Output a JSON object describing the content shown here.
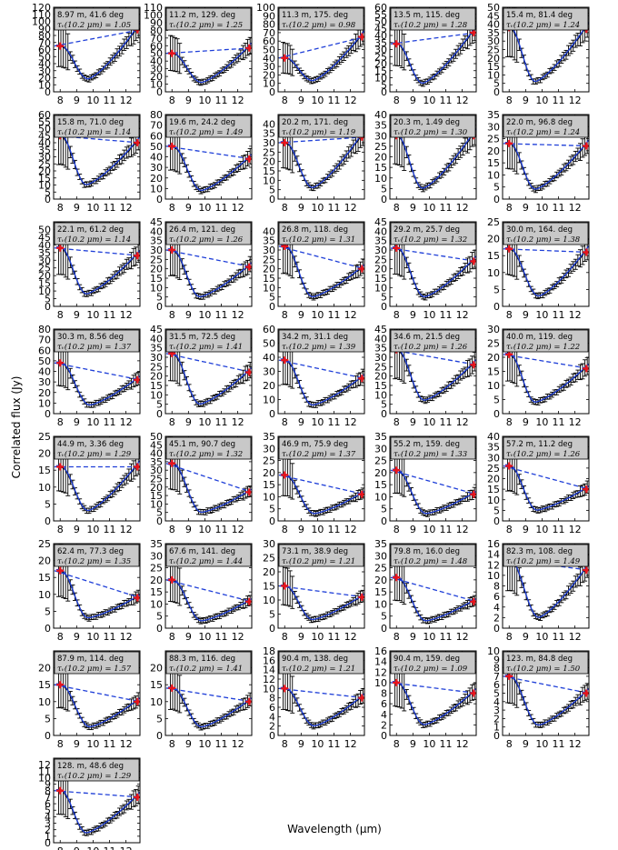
{
  "chart_data": {
    "type": "line",
    "xlabel": "Wavelength (μm)",
    "ylabel": "Correlated flux (Jy)",
    "xlim": [
      7.6,
      12.85
    ],
    "x_ticks": [
      8,
      9,
      10,
      11,
      12
    ],
    "series_legend": [
      "observed correlated flux with error bars",
      "model fit",
      "continuum (dashed)",
      "continuum anchor points"
    ],
    "colors": {
      "data": "#000000",
      "model": "#1f3fd8",
      "continuum": "#1f3fd8",
      "anchor": "#e8141b",
      "annotation_bg": "#c8c8c8"
    },
    "panels": [
      {
        "baseline": "8.97 m, 41.6 deg",
        "tau": "τᵥ(10.2 μm) = 1.05",
        "ylim": [
          0,
          120
        ],
        "yticks": [
          0,
          10,
          20,
          30,
          40,
          50,
          60,
          70,
          80,
          90,
          100,
          110,
          120
        ],
        "start": 65,
        "end": 88,
        "min": 18,
        "min_x": 9.7
      },
      {
        "baseline": "11.2 m, 129. deg",
        "tau": "τᵥ(10.2 μm) = 1.25",
        "ylim": [
          0,
          110
        ],
        "yticks": [
          0,
          10,
          20,
          30,
          40,
          50,
          60,
          70,
          80,
          90,
          100,
          110
        ],
        "start": 50,
        "end": 57,
        "min": 12,
        "min_x": 9.8
      },
      {
        "baseline": "11.3 m, 175. deg",
        "tau": "τᵥ(10.2 μm) = 0.98",
        "ylim": [
          0,
          100
        ],
        "yticks": [
          0,
          10,
          20,
          30,
          40,
          50,
          60,
          70,
          80,
          90,
          100
        ],
        "start": 40,
        "end": 65,
        "min": 13,
        "min_x": 9.7
      },
      {
        "baseline": "13.5 m, 115. deg",
        "tau": "τᵥ(10.2 μm) = 1.28",
        "ylim": [
          0,
          60
        ],
        "yticks": [
          0,
          5,
          10,
          15,
          20,
          25,
          30,
          35,
          40,
          45,
          50,
          55,
          60
        ],
        "start": 34,
        "end": 42,
        "min": 6,
        "min_x": 9.6
      },
      {
        "baseline": "15.4 m, 81.4 deg",
        "tau": "τᵥ(10.2 μm) = 1.24",
        "ylim": [
          0,
          50
        ],
        "yticks": [
          0,
          5,
          10,
          15,
          20,
          25,
          30,
          35,
          40,
          45,
          50
        ],
        "start": 38,
        "end": 37,
        "min": 6,
        "min_x": 9.6
      },
      {
        "baseline": "15.8 m, 71.0 deg",
        "tau": "τᵥ(10.2 μm) = 1.14",
        "ylim": [
          0,
          60
        ],
        "yticks": [
          0,
          5,
          10,
          15,
          20,
          25,
          30,
          35,
          40,
          45,
          50,
          55,
          60
        ],
        "start": 45,
        "end": 40,
        "min": 10,
        "min_x": 9.6
      },
      {
        "baseline": "19.6 m, 24.2 deg",
        "tau": "τᵥ(10.2 μm) = 1.49",
        "ylim": [
          0,
          80
        ],
        "yticks": [
          0,
          10,
          20,
          30,
          40,
          50,
          60,
          70,
          80
        ],
        "start": 50,
        "end": 38,
        "min": 8,
        "min_x": 9.8
      },
      {
        "baseline": "20.2 m, 171. deg",
        "tau": "τᵥ(10.2 μm) = 1.19",
        "ylim": [
          0,
          45
        ],
        "yticks": [
          0,
          5,
          10,
          15,
          20,
          25,
          30,
          35,
          40
        ],
        "start": 30,
        "end": 33,
        "min": 6,
        "min_x": 9.7
      },
      {
        "baseline": "20.3 m, 1.49 deg",
        "tau": "τᵥ(10.2 μm) = 1.30",
        "ylim": [
          0,
          40
        ],
        "yticks": [
          0,
          5,
          10,
          15,
          20,
          25,
          30,
          35,
          40
        ],
        "start": 30,
        "end": 30,
        "min": 5,
        "min_x": 9.6
      },
      {
        "baseline": "22.0 m, 96.8 deg",
        "tau": "τᵥ(10.2 μm) = 1.24",
        "ylim": [
          0,
          35
        ],
        "yticks": [
          0,
          5,
          10,
          15,
          20,
          25,
          30,
          35
        ],
        "start": 23,
        "end": 22,
        "min": 4,
        "min_x": 9.6
      },
      {
        "baseline": "22.1 m, 61.2 deg",
        "tau": "τᵥ(10.2 μm) = 1.14",
        "ylim": [
          0,
          55
        ],
        "yticks": [
          0,
          5,
          10,
          15,
          20,
          25,
          30,
          35,
          40,
          45,
          50
        ],
        "start": 38,
        "end": 33,
        "min": 8,
        "min_x": 9.6
      },
      {
        "baseline": "26.4 m, 121. deg",
        "tau": "τᵥ(10.2 μm) = 1.26",
        "ylim": [
          0,
          45
        ],
        "yticks": [
          0,
          5,
          10,
          15,
          20,
          25,
          30,
          35,
          40,
          45
        ],
        "start": 30,
        "end": 21,
        "min": 5,
        "min_x": 9.7
      },
      {
        "baseline": "26.8 m, 118. deg",
        "tau": "τᵥ(10.2 μm) = 1.31",
        "ylim": [
          0,
          45
        ],
        "yticks": [
          0,
          5,
          10,
          15,
          20,
          25,
          30,
          35,
          40
        ],
        "start": 32,
        "end": 20,
        "min": 5,
        "min_x": 9.7
      },
      {
        "baseline": "29.2 m, 25.7 deg",
        "tau": "τᵥ(10.2 μm) = 1.32",
        "ylim": [
          0,
          45
        ],
        "yticks": [
          0,
          5,
          10,
          15,
          20,
          25,
          30,
          35,
          40,
          45
        ],
        "start": 31,
        "end": 24,
        "min": 5,
        "min_x": 9.7
      },
      {
        "baseline": "30.0 m, 164. deg",
        "tau": "τᵥ(10.2 μm) = 1.38",
        "ylim": [
          0,
          25
        ],
        "yticks": [
          0,
          5,
          10,
          15,
          20,
          25
        ],
        "start": 17,
        "end": 16,
        "min": 3,
        "min_x": 9.8
      },
      {
        "baseline": "30.3 m, 8.56 deg",
        "tau": "τᵥ(10.2 μm) = 1.37",
        "ylim": [
          0,
          80
        ],
        "yticks": [
          0,
          10,
          20,
          30,
          40,
          50,
          60,
          70,
          80
        ],
        "start": 48,
        "end": 32,
        "min": 8,
        "min_x": 9.8
      },
      {
        "baseline": "31.5 m, 72.5 deg",
        "tau": "τᵥ(10.2 μm) = 1.41",
        "ylim": [
          0,
          45
        ],
        "yticks": [
          0,
          5,
          10,
          15,
          20,
          25,
          30,
          35,
          40,
          45
        ],
        "start": 32,
        "end": 22,
        "min": 5,
        "min_x": 9.7
      },
      {
        "baseline": "34.2 m, 31.1 deg",
        "tau": "τᵥ(10.2 μm) = 1.39",
        "ylim": [
          0,
          60
        ],
        "yticks": [
          0,
          10,
          20,
          30,
          40,
          50,
          60
        ],
        "start": 38,
        "end": 25,
        "min": 6,
        "min_x": 9.7
      },
      {
        "baseline": "34.6 m, 21.5 deg",
        "tau": "τᵥ(10.2 μm) = 1.26",
        "ylim": [
          0,
          45
        ],
        "yticks": [
          0,
          5,
          10,
          15,
          20,
          25,
          30,
          35,
          40,
          45
        ],
        "start": 34,
        "end": 26,
        "min": 7,
        "min_x": 9.7
      },
      {
        "baseline": "40.0 m, 119. deg",
        "tau": "τᵥ(10.2 μm) = 1.22",
        "ylim": [
          0,
          30
        ],
        "yticks": [
          0,
          5,
          10,
          15,
          20,
          25,
          30
        ],
        "start": 21,
        "end": 16,
        "min": 4,
        "min_x": 9.6
      },
      {
        "baseline": "44.9 m, 3.36 deg",
        "tau": "τᵥ(10.2 μm) = 1.29",
        "ylim": [
          0,
          25
        ],
        "yticks": [
          0,
          5,
          10,
          15,
          20,
          25
        ],
        "start": 16,
        "end": 16,
        "min": 3,
        "min_x": 9.7
      },
      {
        "baseline": "45.1 m, 90.7 deg",
        "tau": "τᵥ(10.2 μm) = 1.32",
        "ylim": [
          0,
          50
        ],
        "yticks": [
          0,
          5,
          10,
          15,
          20,
          25,
          30,
          35,
          40,
          45,
          50
        ],
        "start": 34,
        "end": 17,
        "min": 5,
        "min_x": 9.8
      },
      {
        "baseline": "46.9 m, 75.9 deg",
        "tau": "τᵥ(10.2 μm) = 1.37",
        "ylim": [
          0,
          35
        ],
        "yticks": [
          0,
          5,
          10,
          15,
          20,
          25,
          30,
          35
        ],
        "start": 19,
        "end": 11,
        "min": 3,
        "min_x": 9.8
      },
      {
        "baseline": "55.2 m, 159. deg",
        "tau": "τᵥ(10.2 μm) = 1.33",
        "ylim": [
          0,
          35
        ],
        "yticks": [
          0,
          5,
          10,
          15,
          20,
          25,
          30,
          35
        ],
        "start": 21,
        "end": 11,
        "min": 3,
        "min_x": 9.8
      },
      {
        "baseline": "57.2 m, 11.2 deg",
        "tau": "τᵥ(10.2 μm) = 1.26",
        "ylim": [
          0,
          40
        ],
        "yticks": [
          0,
          5,
          10,
          15,
          20,
          25,
          30,
          35,
          40
        ],
        "start": 26,
        "end": 15,
        "min": 5,
        "min_x": 9.7
      },
      {
        "baseline": "62.4 m, 77.3 deg",
        "tau": "τᵥ(10.2 μm) = 1.35",
        "ylim": [
          0,
          25
        ],
        "yticks": [
          0,
          5,
          10,
          15,
          20,
          25
        ],
        "start": 17,
        "end": 9,
        "min": 3,
        "min_x": 9.7
      },
      {
        "baseline": "67.6 m, 141. deg",
        "tau": "τᵥ(10.2 μm) = 1.44",
        "ylim": [
          0,
          35
        ],
        "yticks": [
          0,
          5,
          10,
          15,
          20,
          25,
          30,
          35
        ],
        "start": 20,
        "end": 11,
        "min": 3,
        "min_x": 9.8
      },
      {
        "baseline": "73.1 m, 38.9 deg",
        "tau": "τᵥ(10.2 μm) = 1.21",
        "ylim": [
          0,
          30
        ],
        "yticks": [
          0,
          5,
          10,
          15,
          20,
          25,
          30
        ],
        "start": 15,
        "end": 11,
        "min": 3,
        "min_x": 9.7
      },
      {
        "baseline": "79.8 m, 16.0 deg",
        "tau": "τᵥ(10.2 μm) = 1.48",
        "ylim": [
          0,
          35
        ],
        "yticks": [
          0,
          5,
          10,
          15,
          20,
          25,
          30,
          35
        ],
        "start": 21,
        "end": 11,
        "min": 3,
        "min_x": 9.8
      },
      {
        "baseline": "82.3 m, 108. deg",
        "tau": "τᵥ(10.2 μm) = 1.49",
        "ylim": [
          0,
          16
        ],
        "yticks": [
          0,
          2,
          4,
          6,
          8,
          10,
          12,
          14,
          16
        ],
        "start": 13,
        "end": 11,
        "min": 2,
        "min_x": 9.8
      },
      {
        "baseline": "87.9 m, 114. deg",
        "tau": "τᵥ(10.2 μm) = 1.57",
        "ylim": [
          0,
          25
        ],
        "yticks": [
          0,
          5,
          10,
          15,
          20
        ],
        "start": 15,
        "end": 10,
        "min": 2.5,
        "min_x": 9.8
      },
      {
        "baseline": "88.3 m, 116. deg",
        "tau": "τᵥ(10.2 μm) = 1.41",
        "ylim": [
          0,
          25
        ],
        "yticks": [
          0,
          5,
          10,
          15,
          20
        ],
        "start": 14,
        "end": 10,
        "min": 2.5,
        "min_x": 9.8
      },
      {
        "baseline": "90.4 m, 138. deg",
        "tau": "τᵥ(10.2 μm) = 1.21",
        "ylim": [
          0,
          18
        ],
        "yticks": [
          0,
          2,
          4,
          6,
          8,
          10,
          12,
          14,
          16,
          18
        ],
        "start": 10,
        "end": 8,
        "min": 2,
        "min_x": 9.8
      },
      {
        "baseline": "90.4 m, 159. deg",
        "tau": "τᵥ(10.2 μm) = 1.09",
        "ylim": [
          0,
          16
        ],
        "yticks": [
          0,
          2,
          4,
          6,
          8,
          10,
          12,
          14,
          16
        ],
        "start": 10,
        "end": 8,
        "min": 2,
        "min_x": 9.7
      },
      {
        "baseline": "123. m, 84.8 deg",
        "tau": "τᵥ(10.2 μm) = 1.50",
        "ylim": [
          0,
          10
        ],
        "yticks": [
          0,
          1,
          2,
          3,
          4,
          5,
          6,
          7,
          8,
          9,
          10
        ],
        "start": 7,
        "end": 5,
        "min": 1.2,
        "min_x": 9.8
      },
      {
        "baseline": "128. m, 48.6 deg",
        "tau": "τᵥ(10.2 μm) = 1.29",
        "ylim": [
          0,
          13
        ],
        "yticks": [
          0,
          1,
          2,
          3,
          4,
          5,
          6,
          7,
          8,
          9,
          10,
          11,
          12
        ],
        "start": 8,
        "end": 7,
        "min": 1.5,
        "min_x": 9.6
      }
    ]
  }
}
